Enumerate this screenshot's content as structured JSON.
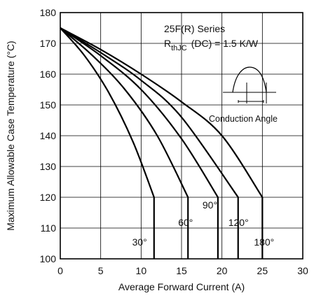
{
  "chart_data": {
    "type": "line",
    "xlabel": "Average Forward Current (A)",
    "ylabel": "Maximum Allowable Case Temperature (°C)",
    "xlim": [
      0,
      30
    ],
    "ylim": [
      100,
      180
    ],
    "xticks": [
      0,
      5,
      10,
      15,
      20,
      25,
      30
    ],
    "yticks": [
      100,
      110,
      120,
      130,
      140,
      150,
      160,
      170,
      180
    ],
    "grid": true,
    "annotations": {
      "series_title": "25F(R) Series",
      "rth_main": "R",
      "rth_sub": "thJC",
      "rth_rest": "(DC) = 1.5 K/W",
      "conduction_label": "Conduction Angle"
    },
    "series": [
      {
        "name": "30°",
        "x": [
          0,
          3,
          6,
          9,
          11.6,
          11.6
        ],
        "y": [
          175,
          166,
          154,
          138,
          120,
          100
        ]
      },
      {
        "name": "60°",
        "x": [
          0,
          4,
          8,
          12,
          15.8,
          15.8
        ],
        "y": [
          175,
          166,
          155,
          140,
          120,
          100
        ]
      },
      {
        "name": "90°",
        "x": [
          0,
          5,
          10,
          15,
          19.5,
          19.5
        ],
        "y": [
          175,
          166,
          155,
          139,
          120,
          100
        ]
      },
      {
        "name": "120°",
        "x": [
          0,
          5,
          10,
          15,
          22,
          22
        ],
        "y": [
          175,
          167,
          158,
          146,
          120,
          100
        ]
      },
      {
        "name": "180°",
        "x": [
          0,
          5,
          10,
          15,
          20,
          25,
          25
        ],
        "y": [
          175,
          168,
          160,
          151,
          140,
          120,
          100
        ]
      }
    ]
  }
}
